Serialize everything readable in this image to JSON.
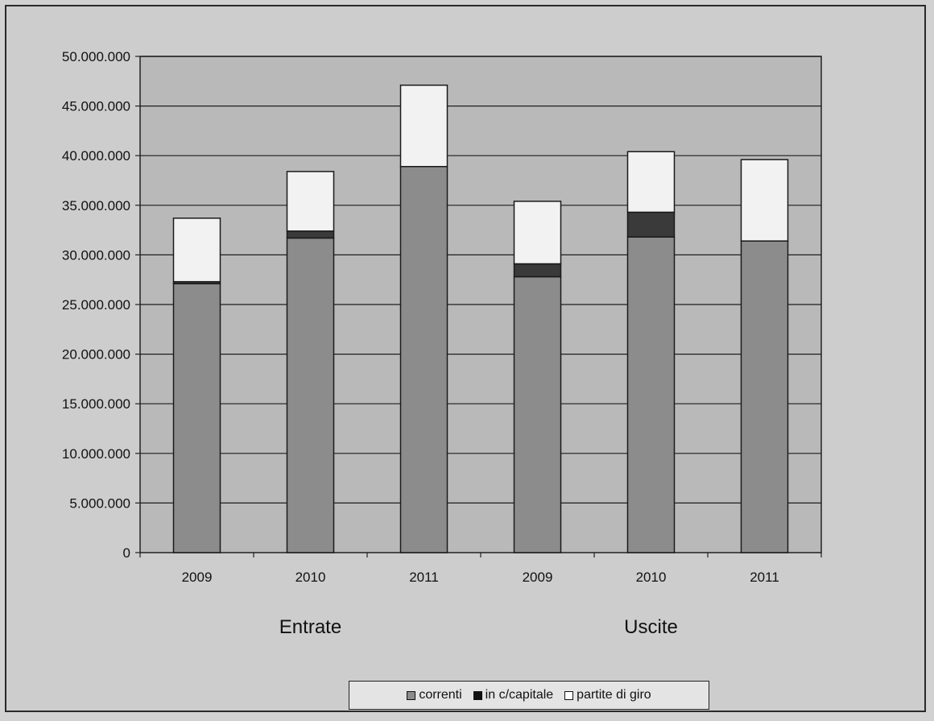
{
  "chart_data": {
    "type": "bar",
    "stacked": true,
    "categories": [
      "2009",
      "2010",
      "2011",
      "2009",
      "2010",
      "2011"
    ],
    "groups": [
      {
        "label": "Entrate",
        "categories": [
          "2009",
          "2010",
          "2011"
        ]
      },
      {
        "label": "Uscite",
        "categories": [
          "2009",
          "2010",
          "2011"
        ]
      }
    ],
    "series": [
      {
        "name": "correnti",
        "color": "#8c8c8c",
        "values": [
          27100000,
          31700000,
          38900000,
          27800000,
          31800000,
          31400000
        ]
      },
      {
        "name": "in c/capitale",
        "color": "#3a3a3a",
        "values": [
          200000,
          700000,
          0,
          1300000,
          2500000,
          0
        ]
      },
      {
        "name": "partite di giro",
        "color": "#f2f2f2",
        "values": [
          6400000,
          6000000,
          8200000,
          6300000,
          6100000,
          8200000
        ]
      }
    ],
    "yticks": [
      "0",
      "5.000.000",
      "10.000.000",
      "15.000.000",
      "20.000.000",
      "25.000.000",
      "30.000.000",
      "35.000.000",
      "40.000.000",
      "45.000.000",
      "50.000.000"
    ],
    "ylim": [
      0,
      50000000
    ],
    "ystep": 5000000,
    "grid": true,
    "legend_position": "bottom"
  }
}
